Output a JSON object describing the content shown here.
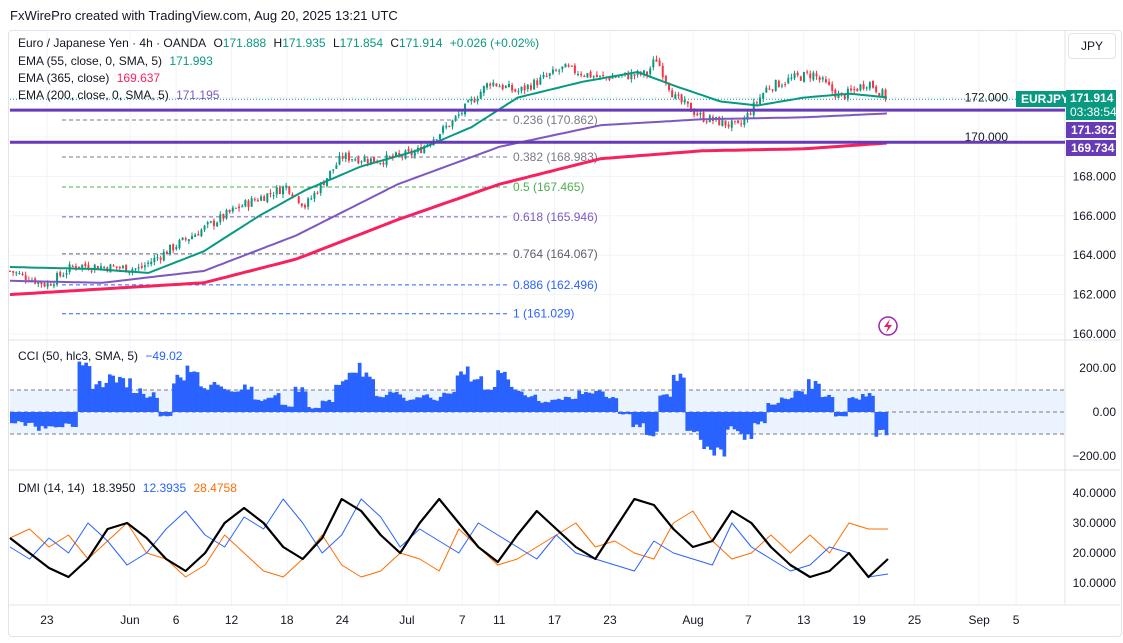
{
  "credit": "FxWirePro created with TradingView.com, Aug 20, 2025 13:21 UTC",
  "currency_button": "JPY",
  "header": {
    "symbol": "Euro / Japanese Yen · 4h · OANDA",
    "o_label": "O",
    "o": "171.888",
    "h_label": "H",
    "h": "171.935",
    "l_label": "L",
    "l": "171.854",
    "c_label": "C",
    "c": "171.914",
    "change": "+0.026 (+0.02%)"
  },
  "indicators": [
    {
      "label": "EMA (55, close, 0, SMA, 5)",
      "value": "171.993",
      "color": "#089981"
    },
    {
      "label": "EMA (365, close)",
      "value": "169.637",
      "color": "#f7215e"
    },
    {
      "label": "EMA (200, close, 0, SMA, 5)",
      "value": "171.195",
      "color": "#7e57c2"
    }
  ],
  "price_tags": {
    "symbol": "EURJPY",
    "last": "171.914",
    "countdown": "03:38:54",
    "line1": "171.362",
    "line2": "169.734"
  },
  "cci": {
    "label": "CCI (50, hlc3, SMA, 5)",
    "value": "−49.02"
  },
  "dmi": {
    "label": "DMI (14, 14)",
    "adx": "18.3950",
    "plus": "12.3935",
    "minus": "28.4758"
  },
  "chart_data": {
    "type": "candlestick",
    "x_ticks": [
      [
        "23",
        4
      ],
      [
        "Jun",
        13
      ],
      [
        "6",
        18
      ],
      [
        "12",
        24
      ],
      [
        "18",
        30
      ],
      [
        "24",
        36
      ],
      [
        "Jul",
        43
      ],
      [
        "7",
        49
      ],
      [
        "11",
        53
      ],
      [
        "17",
        59
      ],
      [
        "23",
        65
      ],
      [
        "Aug",
        74
      ],
      [
        "7",
        80
      ],
      [
        "13",
        86
      ],
      [
        "19",
        92
      ],
      [
        "25",
        98
      ],
      [
        "Sep",
        105
      ],
      [
        "5",
        109
      ]
    ],
    "price_axis": [
      "172.000",
      "170.000",
      "168.000",
      "166.000",
      "164.000",
      "162.000",
      "160.000"
    ],
    "price_range": [
      160,
      172
    ],
    "price_path": [
      [
        0,
        163.2
      ],
      [
        4,
        162.5
      ],
      [
        7,
        163.5
      ],
      [
        14,
        163.3
      ],
      [
        18,
        164.5
      ],
      [
        25,
        166.5
      ],
      [
        30,
        167.5
      ],
      [
        32,
        166.5
      ],
      [
        36,
        169
      ],
      [
        40,
        168.8
      ],
      [
        44,
        169.2
      ],
      [
        48,
        170.8
      ],
      [
        52,
        172.8
      ],
      [
        55,
        172.3
      ],
      [
        60,
        173.5
      ],
      [
        64,
        173
      ],
      [
        69,
        173.2
      ],
      [
        70,
        174
      ],
      [
        72,
        172
      ],
      [
        75,
        171
      ],
      [
        79,
        170.5
      ],
      [
        82,
        172.5
      ],
      [
        85,
        173
      ],
      [
        87,
        173.2
      ],
      [
        90,
        172
      ],
      [
        93,
        172.8
      ],
      [
        95.2,
        171.9
      ]
    ],
    "ema55": [
      [
        0,
        163.4
      ],
      [
        9,
        163.3
      ],
      [
        15,
        163.1
      ],
      [
        21,
        164.2
      ],
      [
        27,
        166
      ],
      [
        32,
        167.3
      ],
      [
        38,
        168.5
      ],
      [
        44,
        169.3
      ],
      [
        50,
        170.5
      ],
      [
        55,
        172
      ],
      [
        62,
        172.8
      ],
      [
        68,
        173.3
      ],
      [
        72,
        172.6
      ],
      [
        77,
        171.8
      ],
      [
        81,
        171.6
      ],
      [
        86,
        172
      ],
      [
        91,
        172.2
      ],
      [
        95.2,
        172
      ]
    ],
    "ema200": [
      [
        0,
        162.7
      ],
      [
        10,
        162.6
      ],
      [
        21,
        163.2
      ],
      [
        31,
        165
      ],
      [
        42,
        167.6
      ],
      [
        53,
        169.5
      ],
      [
        64,
        170.6
      ],
      [
        75,
        170.9
      ],
      [
        86,
        171
      ],
      [
        95.2,
        171.2
      ]
    ],
    "ema365": [
      [
        0,
        162
      ],
      [
        21,
        162.6
      ],
      [
        31,
        163.8
      ],
      [
        42,
        165.8
      ],
      [
        53,
        167.6
      ],
      [
        64,
        168.9
      ],
      [
        75,
        169.3
      ],
      [
        86,
        169.4
      ],
      [
        95.2,
        169.7
      ]
    ],
    "horizontal_lines": [
      171.362,
      169.734
    ],
    "fib_levels": [
      {
        "label": "0.236 (170.862)",
        "price": 170.862,
        "color": "#787b86"
      },
      {
        "label": "0.382 (168.983)",
        "price": 168.983,
        "color": "#787b86"
      },
      {
        "label": "0.5 (167.465)",
        "price": 167.465,
        "color": "#4caf50"
      },
      {
        "label": "0.618 (165.946)",
        "price": 165.946,
        "color": "#7e57c2"
      },
      {
        "label": "0.764 (164.067)",
        "price": 164.067,
        "color": "#5d606b"
      },
      {
        "label": "0.886 (162.496)",
        "price": 162.496,
        "color": "#2962ff"
      },
      {
        "label": "1 (161.029)",
        "price": 161.029,
        "color": "#2962ff"
      }
    ],
    "cci_axis": [
      "200.00",
      "0.00",
      "−200.00"
    ],
    "cci_values": [
      -50,
      -60,
      -75,
      -80,
      -60,
      200,
      130,
      160,
      140,
      100,
      80,
      -20,
      150,
      200,
      120,
      130,
      90,
      110,
      60,
      80,
      30,
      100,
      20,
      50,
      150,
      200,
      170,
      80,
      90,
      60,
      70,
      60,
      90,
      200,
      150,
      120,
      170,
      100,
      80,
      50,
      60,
      60,
      90,
      100,
      70,
      -10,
      -60,
      -100,
      80,
      170,
      -100,
      -150,
      -200,
      -80,
      -120,
      -50,
      40,
      60,
      100,
      130,
      80,
      -20,
      70,
      80,
      -100
    ],
    "dmi_axis": [
      "40.0000",
      "30.0000",
      "20.0000",
      "10.0000"
    ],
    "adx": [
      25,
      20,
      15,
      12,
      18,
      28,
      30,
      25,
      18,
      14,
      20,
      30,
      35,
      30,
      22,
      18,
      25,
      38,
      34,
      26,
      20,
      30,
      38,
      30,
      22,
      17,
      26,
      34,
      28,
      22,
      18,
      28,
      38,
      36,
      28,
      22,
      24,
      34,
      30,
      22,
      16,
      12,
      14,
      20,
      12,
      18
    ],
    "plus_di": [
      22,
      18,
      25,
      20,
      30,
      24,
      16,
      20,
      28,
      34,
      26,
      22,
      32,
      28,
      38,
      30,
      20,
      26,
      38,
      32,
      22,
      28,
      24,
      20,
      30,
      26,
      22,
      18,
      26,
      20,
      18,
      16,
      14,
      24,
      20,
      18,
      16,
      30,
      22,
      18,
      14,
      16,
      22,
      20,
      12,
      13
    ],
    "minus_di": [
      25,
      28,
      22,
      26,
      18,
      24,
      30,
      20,
      18,
      12,
      16,
      26,
      20,
      14,
      12,
      18,
      26,
      16,
      12,
      14,
      20,
      18,
      14,
      28,
      22,
      16,
      18,
      22,
      26,
      30,
      22,
      24,
      20,
      18,
      30,
      34,
      24,
      18,
      20,
      26,
      20,
      26,
      20,
      30,
      28,
      28
    ]
  }
}
